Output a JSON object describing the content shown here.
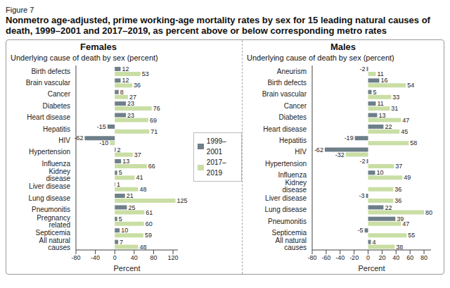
{
  "label": "Figure 7",
  "title": "Nonmetro age-adjusted, prime working-age mortality rates by sex for 15 leading natural causes of death, 1999–2001 and 2017–2019, as percent above or below corresponding metro rates",
  "chart_data": [
    {
      "type": "bar",
      "orientation": "horizontal",
      "title": "Females",
      "subtitle": "Underlying cause of death by sex (percent)",
      "x_label": "Percent",
      "categories": [
        "Birth defects",
        "Brain vascular",
        "Cancer",
        "Diabetes",
        "Heart disease",
        "Hepatitis",
        "HIV",
        "Hypertension",
        "Influenza",
        "Kidney disease",
        "Liver disease",
        "Lung disease",
        "Pneumonitis",
        "Pregnancy related",
        "Septicemia",
        "All natural causes"
      ],
      "series": [
        {
          "name": "1999–2001",
          "color": "#6e7f89",
          "values": [
            12,
            12,
            8,
            23,
            23,
            -15,
            -62,
            2,
            13,
            5,
            1,
            21,
            25,
            5,
            10,
            7
          ]
        },
        {
          "name": "2017–2019",
          "color": "#c9dea4",
          "values": [
            53,
            36,
            27,
            76,
            69,
            71,
            -10,
            37,
            66,
            41,
            48,
            125,
            61,
            60,
            59,
            48
          ]
        }
      ],
      "xlim": [
        -80,
        130
      ],
      "xticks": [
        -80,
        -40,
        0,
        40,
        80,
        120
      ],
      "data_labels": true,
      "legend": "right"
    },
    {
      "type": "bar",
      "orientation": "horizontal",
      "title": "Males",
      "subtitle": "Underlying cause of death by sex (percent)",
      "x_label": "Percent",
      "categories": [
        "Aneurism",
        "Birth defects",
        "Brain vascular",
        "Cancer",
        "Diabetes",
        "Heart disease",
        "Hepatitis",
        "HIV",
        "Hypertension",
        "Influenza",
        "Kidney disease",
        "Liver disease",
        "Lung disease",
        "Pneumonitis",
        "Septicemia",
        "All natural causes"
      ],
      "series": [
        {
          "name": "1999–2001",
          "color": "#6e7f89",
          "values": [
            -2,
            16,
            5,
            11,
            13,
            22,
            -19,
            -62,
            -2,
            10,
            0,
            -3,
            22,
            39,
            -5,
            4
          ]
        },
        {
          "name": "2017–2019",
          "color": "#c9dea4",
          "values": [
            11,
            54,
            33,
            31,
            47,
            45,
            58,
            -32,
            37,
            49,
            36,
            36,
            80,
            47,
            55,
            38
          ]
        }
      ],
      "xlim": [
        -80,
        90
      ],
      "xticks": [
        -80,
        -60,
        -40,
        -20,
        0,
        20,
        40,
        60,
        80
      ],
      "data_labels": true
    }
  ]
}
